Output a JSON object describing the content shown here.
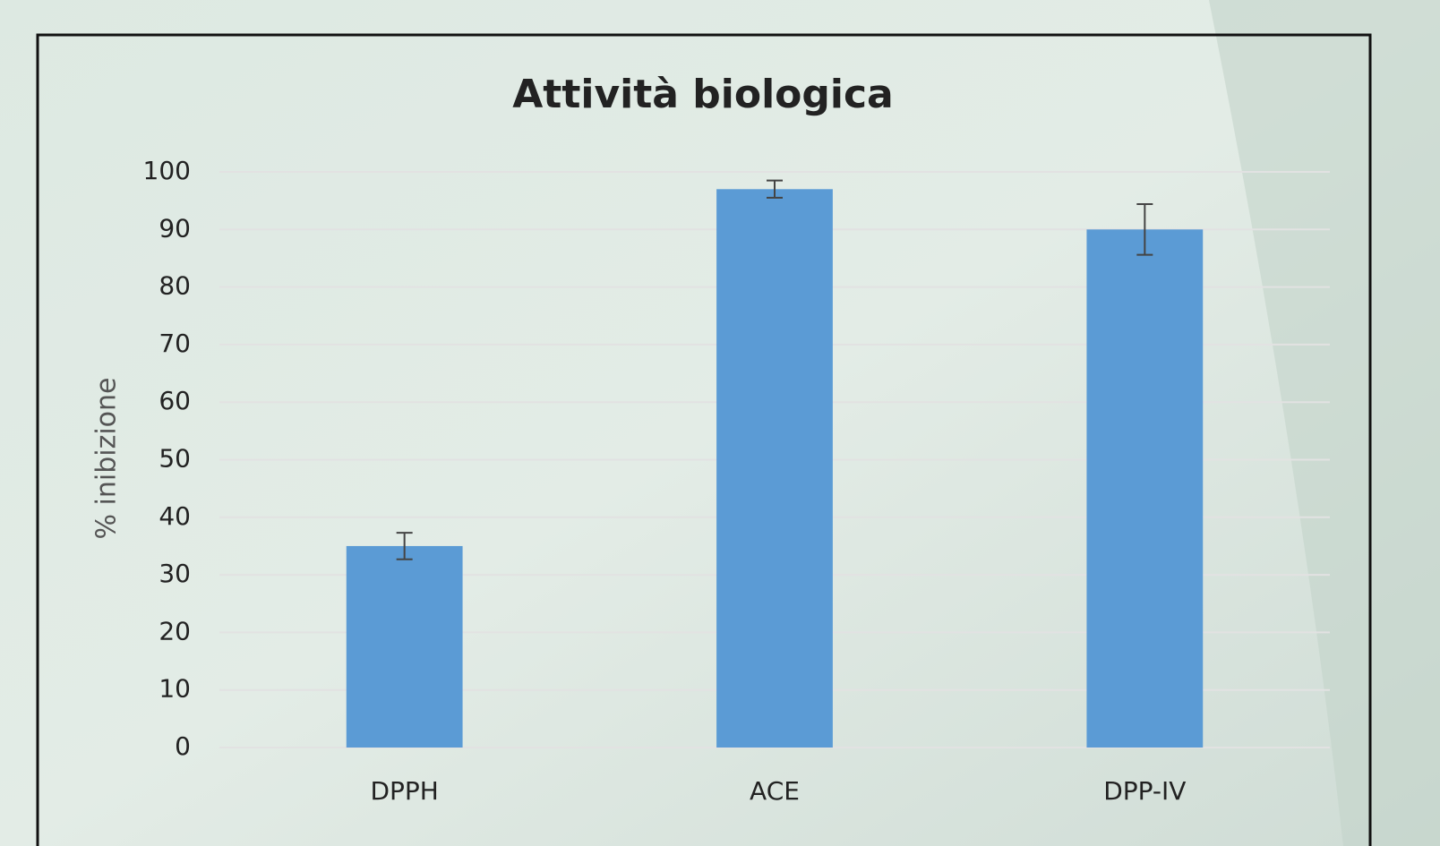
{
  "chart_data": {
    "type": "bar",
    "title": "Attività biologica",
    "y_label": "% inibizione",
    "categories": [
      "DPPH",
      "ACE",
      "DPP-IV"
    ],
    "values": [
      35,
      97,
      90
    ],
    "errors": [
      2.3,
      1.5,
      4.4
    ],
    "color": "#5b9bd5",
    "ylim": [
      0,
      100
    ],
    "yticks": [
      0,
      10,
      20,
      30,
      40,
      50,
      60,
      70,
      80,
      90,
      100
    ],
    "grid": true
  }
}
